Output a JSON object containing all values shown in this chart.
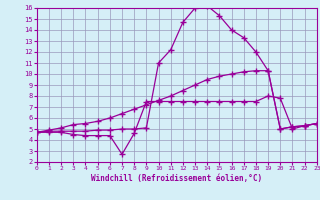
{
  "background_color": "#d5eff7",
  "line_color": "#990099",
  "grid_color": "#9999bb",
  "xlabel": "Windchill (Refroidissement éolien,°C)",
  "xlim": [
    0,
    23
  ],
  "ylim": [
    2,
    16
  ],
  "x_ticks": [
    0,
    1,
    2,
    3,
    4,
    5,
    6,
    7,
    8,
    9,
    10,
    11,
    12,
    13,
    14,
    15,
    16,
    17,
    18,
    19,
    20,
    21,
    22,
    23
  ],
  "y_ticks": [
    2,
    3,
    4,
    5,
    6,
    7,
    8,
    9,
    10,
    11,
    12,
    13,
    14,
    15,
    16
  ],
  "line1_y": [
    4.7,
    4.7,
    4.7,
    4.5,
    4.4,
    4.4,
    4.4,
    2.7,
    4.6,
    7.5,
    7.5,
    7.5,
    7.5,
    7.5,
    7.5,
    7.5,
    7.5,
    7.5,
    7.5,
    8.0,
    7.8,
    5.0,
    5.3,
    5.5
  ],
  "line2_y": [
    4.7,
    4.9,
    5.1,
    5.4,
    5.5,
    5.7,
    6.0,
    6.4,
    6.8,
    7.2,
    7.6,
    8.0,
    8.5,
    9.0,
    9.5,
    9.8,
    10.0,
    10.2,
    10.3,
    10.3,
    5.0,
    5.2,
    5.3,
    5.5
  ],
  "line3_y": [
    4.7,
    4.8,
    4.8,
    4.8,
    4.8,
    4.9,
    4.9,
    5.0,
    5.0,
    5.1,
    11.0,
    12.2,
    14.7,
    16.0,
    16.2,
    15.3,
    14.0,
    13.3,
    12.0,
    10.3,
    5.0,
    5.2,
    5.3,
    5.5
  ]
}
